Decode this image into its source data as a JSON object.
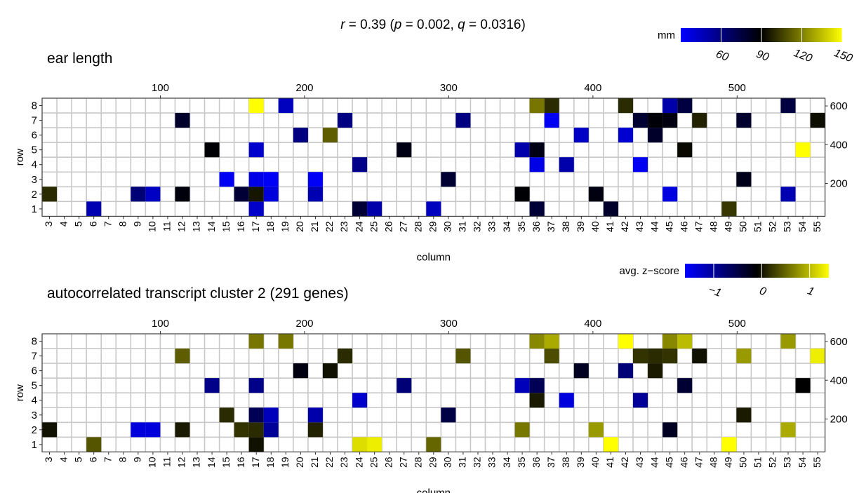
{
  "figure": {
    "title": "r = 0.39 (p = 0.002, q = 0.0316)",
    "title_parts": [
      {
        "text": "r",
        "italic": true
      },
      {
        "text": " = 0.39 (",
        "italic": false
      },
      {
        "text": "p",
        "italic": true
      },
      {
        "text": " = 0.002, ",
        "italic": false
      },
      {
        "text": "q",
        "italic": true
      },
      {
        "text": " = 0.0316)",
        "italic": false
      }
    ]
  },
  "chart_data": [
    {
      "type": "heatmap",
      "title": "ear length",
      "xlabel": "column",
      "ylabel": "row",
      "columns": [
        3,
        4,
        5,
        6,
        7,
        8,
        9,
        10,
        11,
        12,
        13,
        14,
        15,
        16,
        17,
        18,
        19,
        20,
        21,
        22,
        23,
        24,
        25,
        26,
        27,
        28,
        29,
        30,
        31,
        32,
        33,
        34,
        35,
        36,
        37,
        38,
        39,
        40,
        41,
        42,
        43,
        44,
        45,
        46,
        47,
        48,
        49,
        50,
        51,
        52,
        53,
        54,
        55
      ],
      "rows": [
        1,
        2,
        3,
        4,
        5,
        6,
        7,
        8
      ],
      "top_axis_ticks": [
        100,
        200,
        300,
        400,
        500
      ],
      "right_axis_ticks": [
        200,
        400,
        600
      ],
      "top_axis_range": [
        18,
        561
      ],
      "right_axis_range": [
        30,
        640
      ],
      "legend": {
        "title": "mm",
        "range": [
          30,
          150
        ],
        "ticks": [
          60,
          90,
          120,
          150
        ],
        "colors": [
          "#0000ff",
          "#000000",
          "#ffff00"
        ],
        "position": "top-right"
      },
      "cells": [
        {
          "col": 6,
          "row": 1,
          "value": 48
        },
        {
          "col": 17,
          "row": 1,
          "value": 43
        },
        {
          "col": 24,
          "row": 1,
          "value": 77
        },
        {
          "col": 25,
          "row": 1,
          "value": 50
        },
        {
          "col": 29,
          "row": 1,
          "value": 45
        },
        {
          "col": 36,
          "row": 1,
          "value": 77
        },
        {
          "col": 41,
          "row": 1,
          "value": 80
        },
        {
          "col": 49,
          "row": 1,
          "value": 103
        },
        {
          "col": 3,
          "row": 2,
          "value": 100
        },
        {
          "col": 9,
          "row": 2,
          "value": 62
        },
        {
          "col": 10,
          "row": 2,
          "value": 44
        },
        {
          "col": 12,
          "row": 2,
          "value": 87
        },
        {
          "col": 16,
          "row": 2,
          "value": 77
        },
        {
          "col": 17,
          "row": 2,
          "value": 95
        },
        {
          "col": 18,
          "row": 2,
          "value": 38
        },
        {
          "col": 21,
          "row": 2,
          "value": 48
        },
        {
          "col": 35,
          "row": 2,
          "value": 89
        },
        {
          "col": 40,
          "row": 2,
          "value": 86
        },
        {
          "col": 45,
          "row": 2,
          "value": 37
        },
        {
          "col": 53,
          "row": 2,
          "value": 48
        },
        {
          "col": 15,
          "row": 3,
          "value": 33
        },
        {
          "col": 17,
          "row": 3,
          "value": 36
        },
        {
          "col": 18,
          "row": 3,
          "value": 32
        },
        {
          "col": 21,
          "row": 3,
          "value": 32
        },
        {
          "col": 30,
          "row": 3,
          "value": 78
        },
        {
          "col": 50,
          "row": 3,
          "value": 84
        },
        {
          "col": 24,
          "row": 4,
          "value": 58
        },
        {
          "col": 36,
          "row": 4,
          "value": 36
        },
        {
          "col": 38,
          "row": 4,
          "value": 50
        },
        {
          "col": 43,
          "row": 4,
          "value": 33
        },
        {
          "col": 14,
          "row": 5,
          "value": 89
        },
        {
          "col": 17,
          "row": 5,
          "value": 42
        },
        {
          "col": 27,
          "row": 5,
          "value": 85
        },
        {
          "col": 35,
          "row": 5,
          "value": 50
        },
        {
          "col": 36,
          "row": 5,
          "value": 85
        },
        {
          "col": 46,
          "row": 5,
          "value": 92
        },
        {
          "col": 54,
          "row": 5,
          "value": 150
        },
        {
          "col": 20,
          "row": 6,
          "value": 60
        },
        {
          "col": 22,
          "row": 6,
          "value": 112
        },
        {
          "col": 39,
          "row": 6,
          "value": 44
        },
        {
          "col": 42,
          "row": 6,
          "value": 41
        },
        {
          "col": 44,
          "row": 6,
          "value": 80
        },
        {
          "col": 12,
          "row": 7,
          "value": 80
        },
        {
          "col": 23,
          "row": 7,
          "value": 60
        },
        {
          "col": 31,
          "row": 7,
          "value": 60
        },
        {
          "col": 37,
          "row": 7,
          "value": 33
        },
        {
          "col": 43,
          "row": 7,
          "value": 78
        },
        {
          "col": 44,
          "row": 7,
          "value": 88
        },
        {
          "col": 45,
          "row": 7,
          "value": 86
        },
        {
          "col": 47,
          "row": 7,
          "value": 98
        },
        {
          "col": 50,
          "row": 7,
          "value": 79
        },
        {
          "col": 55,
          "row": 7,
          "value": 93
        },
        {
          "col": 17,
          "row": 8,
          "value": 150
        },
        {
          "col": 19,
          "row": 8,
          "value": 45
        },
        {
          "col": 36,
          "row": 8,
          "value": 118
        },
        {
          "col": 37,
          "row": 8,
          "value": 100
        },
        {
          "col": 42,
          "row": 8,
          "value": 100
        },
        {
          "col": 45,
          "row": 8,
          "value": 50
        },
        {
          "col": 46,
          "row": 8,
          "value": 75
        },
        {
          "col": 53,
          "row": 8,
          "value": 75
        }
      ]
    },
    {
      "type": "heatmap",
      "title": "autocorrelated transcript cluster 2  (291 genes)",
      "xlabel": "column",
      "ylabel": "row",
      "columns": [
        3,
        4,
        5,
        6,
        7,
        8,
        9,
        10,
        11,
        12,
        13,
        14,
        15,
        16,
        17,
        18,
        19,
        20,
        21,
        22,
        23,
        24,
        25,
        26,
        27,
        28,
        29,
        30,
        31,
        32,
        33,
        34,
        35,
        36,
        37,
        38,
        39,
        40,
        41,
        42,
        43,
        44,
        45,
        46,
        47,
        48,
        49,
        50,
        51,
        52,
        53,
        54,
        55
      ],
      "rows": [
        1,
        2,
        3,
        4,
        5,
        6,
        7,
        8
      ],
      "top_axis_ticks": [
        100,
        200,
        300,
        400,
        500
      ],
      "right_axis_ticks": [
        200,
        400,
        600
      ],
      "top_axis_range": [
        18,
        561
      ],
      "right_axis_range": [
        30,
        640
      ],
      "legend": {
        "title": "avg. z−score",
        "range": [
          -1.6,
          1.4
        ],
        "ticks": [
          -1,
          0,
          1
        ],
        "tick_labels": [
          "−1",
          "0",
          "1"
        ],
        "colors": [
          "#0000ff",
          "#000000",
          "#ffff00"
        ],
        "position": "top-right"
      },
      "cells": [
        {
          "col": 6,
          "row": 1,
          "value": 0.4
        },
        {
          "col": 17,
          "row": 1,
          "value": 0
        },
        {
          "col": 24,
          "row": 1,
          "value": 1.2
        },
        {
          "col": 25,
          "row": 1,
          "value": 1.3
        },
        {
          "col": 29,
          "row": 1,
          "value": 0.5
        },
        {
          "col": 41,
          "row": 1,
          "value": 1.4
        },
        {
          "col": 49,
          "row": 1,
          "value": 1.4
        },
        {
          "col": 3,
          "row": 2,
          "value": 0
        },
        {
          "col": 9,
          "row": 2,
          "value": -1.4
        },
        {
          "col": 10,
          "row": 2,
          "value": -1.4
        },
        {
          "col": 12,
          "row": 2,
          "value": 0.05
        },
        {
          "col": 16,
          "row": 2,
          "value": 0.2
        },
        {
          "col": 17,
          "row": 2,
          "value": 0.15
        },
        {
          "col": 18,
          "row": 2,
          "value": -1.0
        },
        {
          "col": 21,
          "row": 2,
          "value": 0.1
        },
        {
          "col": 35,
          "row": 2,
          "value": 0.6
        },
        {
          "col": 40,
          "row": 2,
          "value": 0.8
        },
        {
          "col": 45,
          "row": 2,
          "value": -0.3
        },
        {
          "col": 53,
          "row": 2,
          "value": 0.9
        },
        {
          "col": 15,
          "row": 3,
          "value": 0.15
        },
        {
          "col": 17,
          "row": 3,
          "value": -0.6
        },
        {
          "col": 18,
          "row": 3,
          "value": -1.2
        },
        {
          "col": 21,
          "row": 3,
          "value": -1.1
        },
        {
          "col": 30,
          "row": 3,
          "value": -0.5
        },
        {
          "col": 50,
          "row": 3,
          "value": 0.05
        },
        {
          "col": 24,
          "row": 4,
          "value": -1.3
        },
        {
          "col": 36,
          "row": 4,
          "value": 0.05
        },
        {
          "col": 38,
          "row": 4,
          "value": -1.4
        },
        {
          "col": 43,
          "row": 4,
          "value": -1.0
        },
        {
          "col": 14,
          "row": 5,
          "value": -0.9
        },
        {
          "col": 17,
          "row": 5,
          "value": -0.9
        },
        {
          "col": 27,
          "row": 5,
          "value": -0.8
        },
        {
          "col": 35,
          "row": 5,
          "value": -1.2
        },
        {
          "col": 36,
          "row": 5,
          "value": -0.6
        },
        {
          "col": 46,
          "row": 5,
          "value": -0.4
        },
        {
          "col": 54,
          "row": 5,
          "value": -0.1
        },
        {
          "col": 20,
          "row": 6,
          "value": -0.2
        },
        {
          "col": 22,
          "row": 6,
          "value": 0
        },
        {
          "col": 39,
          "row": 6,
          "value": -0.3
        },
        {
          "col": 42,
          "row": 6,
          "value": -0.8
        },
        {
          "col": 44,
          "row": 6,
          "value": 0.05
        },
        {
          "col": 12,
          "row": 7,
          "value": 0.45
        },
        {
          "col": 23,
          "row": 7,
          "value": 0.15
        },
        {
          "col": 31,
          "row": 7,
          "value": 0.4
        },
        {
          "col": 37,
          "row": 7,
          "value": 0.35
        },
        {
          "col": 43,
          "row": 7,
          "value": 0.2
        },
        {
          "col": 44,
          "row": 7,
          "value": 0.15
        },
        {
          "col": 45,
          "row": 7,
          "value": 0.2
        },
        {
          "col": 47,
          "row": 7,
          "value": 0
        },
        {
          "col": 50,
          "row": 7,
          "value": 0.8
        },
        {
          "col": 55,
          "row": 7,
          "value": 1.3
        },
        {
          "col": 17,
          "row": 8,
          "value": 0.6
        },
        {
          "col": 19,
          "row": 8,
          "value": 0.6
        },
        {
          "col": 36,
          "row": 8,
          "value": 0.7
        },
        {
          "col": 37,
          "row": 8,
          "value": 0.9
        },
        {
          "col": 42,
          "row": 8,
          "value": 1.4
        },
        {
          "col": 45,
          "row": 8,
          "value": 0.7
        },
        {
          "col": 46,
          "row": 8,
          "value": 1.0
        },
        {
          "col": 53,
          "row": 8,
          "value": 0.8
        }
      ]
    }
  ]
}
